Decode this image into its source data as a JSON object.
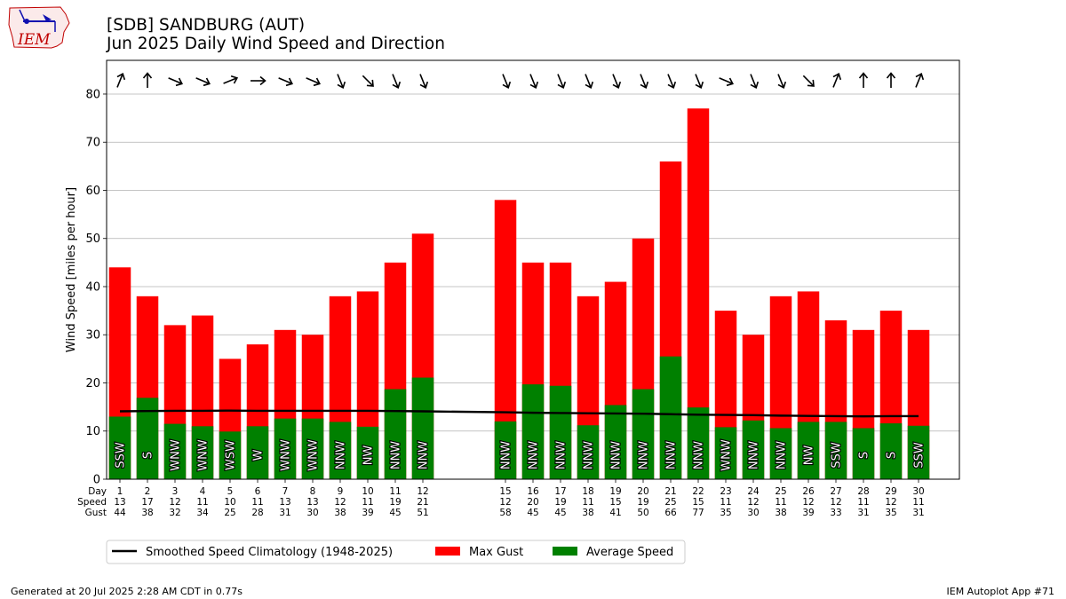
{
  "header": {
    "title": "[SDB] SANDBURG (AUT)",
    "subtitle": "Jun 2025 Daily Wind Speed and Direction",
    "logo_text": "IEM"
  },
  "footer": {
    "left": "Generated at 20 Jul 2025 2:28 AM CDT in 0.77s",
    "right": "IEM Autoplot App #71"
  },
  "chart_data": {
    "type": "bar",
    "ylabel": "Wind Speed [miles per hour]",
    "ylim": [
      0,
      87
    ],
    "yticks": [
      0,
      10,
      20,
      30,
      40,
      50,
      60,
      70,
      80
    ],
    "grid": true,
    "row_labels": [
      "Day",
      "Speed",
      "Gust"
    ],
    "days": [
      1,
      2,
      3,
      4,
      5,
      6,
      7,
      8,
      9,
      10,
      11,
      12,
      15,
      16,
      17,
      18,
      19,
      20,
      21,
      22,
      23,
      24,
      25,
      26,
      27,
      28,
      29,
      30
    ],
    "avg_speed": [
      13,
      17,
      12,
      11,
      10,
      11,
      13,
      13,
      12,
      11,
      19,
      21,
      12,
      20,
      19,
      11,
      15,
      19,
      25,
      15,
      11,
      12,
      11,
      12,
      12,
      11,
      12,
      11
    ],
    "avg_speed_exact": [
      13.0,
      16.9,
      11.5,
      11.0,
      9.9,
      11.0,
      12.6,
      12.6,
      11.9,
      10.9,
      18.7,
      21.1,
      12.0,
      19.7,
      19.4,
      11.2,
      15.4,
      18.7,
      25.5,
      14.9,
      10.8,
      12.2,
      10.6,
      11.9,
      11.9,
      10.6,
      11.6,
      11.1
    ],
    "max_gust": [
      44,
      38,
      32,
      34,
      25,
      28,
      31,
      30,
      38,
      39,
      45,
      51,
      58,
      45,
      45,
      38,
      41,
      50,
      66,
      77,
      35,
      30,
      38,
      39,
      33,
      31,
      35,
      31
    ],
    "direction": [
      "SSW",
      "S",
      "WNW",
      "WNW",
      "WSW",
      "W",
      "WNW",
      "WNW",
      "NNW",
      "NW",
      "NNW",
      "NNW",
      "NNW",
      "NNW",
      "NNW",
      "NNW",
      "NNW",
      "NNW",
      "NNW",
      "NNW",
      "WNW",
      "NNW",
      "NNW",
      "NW",
      "SSW",
      "S",
      "S",
      "SSW"
    ],
    "arrow_heading_deg": [
      22,
      0,
      113,
      113,
      68,
      90,
      113,
      113,
      158,
      135,
      158,
      158,
      158,
      158,
      158,
      158,
      158,
      158,
      158,
      158,
      113,
      158,
      158,
      135,
      22,
      0,
      0,
      22
    ],
    "climatology": [
      14.1,
      14.15,
      14.2,
      14.2,
      14.25,
      14.2,
      14.2,
      14.2,
      14.2,
      14.2,
      14.15,
      14.1,
      13.9,
      13.8,
      13.75,
      13.7,
      13.65,
      13.6,
      13.5,
      13.4,
      13.35,
      13.3,
      13.2,
      13.15,
      13.1,
      13.05,
      13.1,
      13.1
    ],
    "series": [
      {
        "name": "Smoothed Speed Climatology (1948-2025)",
        "color": "#000000"
      },
      {
        "name": "Max Gust",
        "color": "#ff0000"
      },
      {
        "name": "Average Speed",
        "color": "#008000"
      }
    ],
    "legend_position": "bottom-left"
  }
}
